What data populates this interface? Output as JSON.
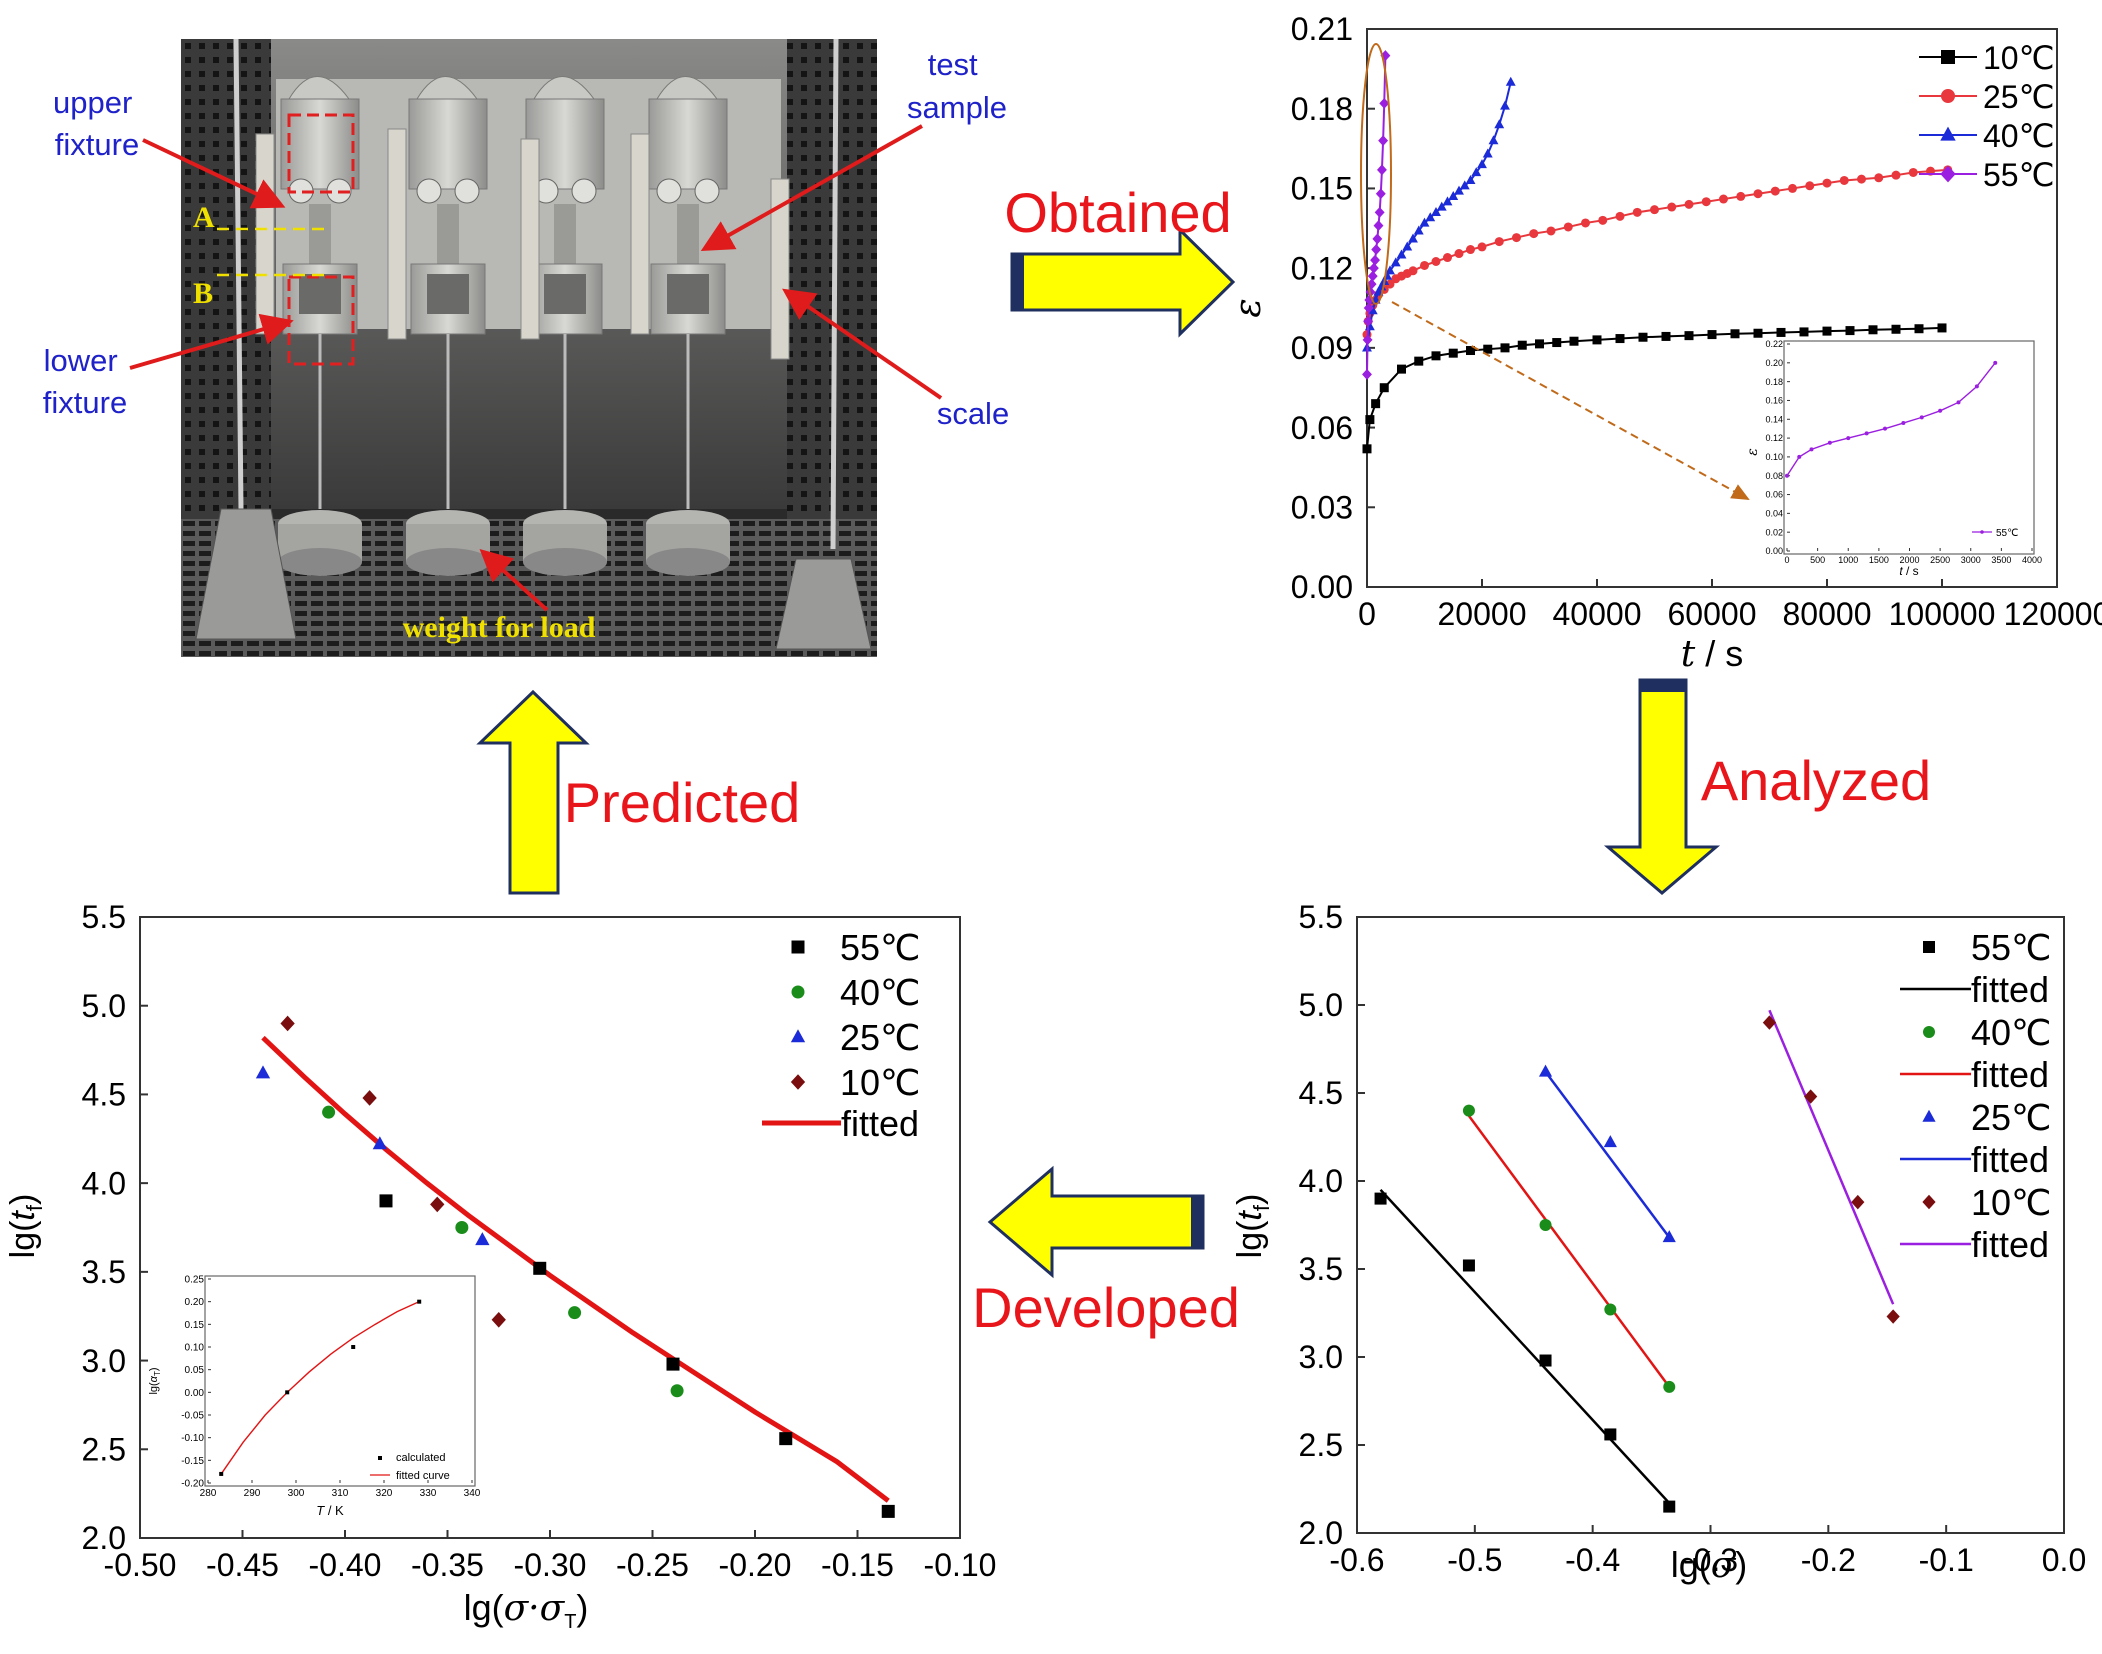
{
  "arrows": {
    "obtained": "Obtained",
    "analyzed": "Analyzed",
    "developed": "Developed",
    "predicted": "Predicted"
  },
  "photo": {
    "labels": {
      "upper_fixture": [
        "upper",
        "fixture"
      ],
      "lower_fixture": [
        "lower",
        "fixture"
      ],
      "test_sample": [
        "test",
        "sample"
      ],
      "scale": "scale",
      "weight": "weight for load",
      "mark_a": "A",
      "mark_b": "B"
    }
  },
  "colors": {
    "arrow_fill": "#ffff00",
    "arrow_outline": "#1f2f5f",
    "arrow_text": "#e8161b",
    "photo_label": "#1e22c8",
    "pointer": "#e01b1b",
    "c10": "#000000",
    "c25": "#e8383d",
    "c40": "#1c2bd8",
    "c55": "#9b1fe0",
    "dark_red": "#7a0e0e",
    "green": "#1a8c1a",
    "fit_red": "#e21414"
  },
  "chart_data": [
    {
      "id": "strain_time",
      "type": "line",
      "xlabel_italic": "t",
      "xlabel_rest": " / s",
      "ylabel": "ε",
      "xlim": [
        0,
        120000
      ],
      "ylim": [
        0,
        0.21
      ],
      "xticks": [
        0,
        20000,
        40000,
        60000,
        80000,
        100000,
        120000
      ],
      "yticks": [
        0,
        0.03,
        0.06,
        0.09,
        0.12,
        0.15,
        0.18,
        0.21
      ],
      "xtick_labels": [
        "0",
        "20000",
        "40000",
        "60000",
        "80000",
        "100000",
        "120000"
      ],
      "ytick_labels": [
        "0.00",
        "0.03",
        "0.06",
        "0.09",
        "0.12",
        "0.15",
        "0.18",
        "0.21"
      ],
      "legend_position": "top-right",
      "series": [
        {
          "name": "10℃",
          "marker": "square",
          "color": "#000000",
          "x": [
            0,
            500,
            1500,
            3000,
            6000,
            9000,
            12000,
            15000,
            18000,
            21000,
            24000,
            27000,
            30000,
            33000,
            36000,
            40000,
            44000,
            48000,
            52000,
            56000,
            60000,
            64000,
            68000,
            72000,
            76000,
            80000,
            84000,
            88000,
            92000,
            96000,
            100000
          ],
          "y": [
            0.052,
            0.063,
            0.069,
            0.075,
            0.082,
            0.085,
            0.087,
            0.088,
            0.089,
            0.0895,
            0.09,
            0.091,
            0.0915,
            0.092,
            0.0925,
            0.093,
            0.0935,
            0.094,
            0.0943,
            0.0946,
            0.095,
            0.0953,
            0.0955,
            0.0958,
            0.096,
            0.0963,
            0.0965,
            0.0968,
            0.097,
            0.0972,
            0.0975
          ]
        },
        {
          "name": "25℃",
          "marker": "circle",
          "color": "#e8383d",
          "x": [
            0,
            200,
            500,
            1000,
            1500,
            2000,
            3000,
            4000,
            5000,
            6000,
            7000,
            8000,
            10000,
            12000,
            14000,
            16000,
            18000,
            20000,
            23000,
            26000,
            29000,
            32000,
            35000,
            38000,
            41000,
            44000,
            47000,
            50000,
            53000,
            56000,
            59000,
            62000,
            65000,
            68000,
            71000,
            74000,
            77000,
            80000,
            83000,
            86000,
            89000,
            92000,
            95000,
            98000,
            101000
          ],
          "y": [
            0.095,
            0.1,
            0.103,
            0.106,
            0.108,
            0.11,
            0.112,
            0.114,
            0.116,
            0.117,
            0.118,
            0.119,
            0.121,
            0.1225,
            0.124,
            0.1255,
            0.127,
            0.128,
            0.13,
            0.1315,
            0.133,
            0.134,
            0.1355,
            0.137,
            0.138,
            0.1395,
            0.141,
            0.142,
            0.143,
            0.144,
            0.145,
            0.146,
            0.147,
            0.148,
            0.149,
            0.15,
            0.151,
            0.152,
            0.153,
            0.1535,
            0.154,
            0.155,
            0.156,
            0.1565,
            0.157
          ]
        },
        {
          "name": "40℃",
          "marker": "triangle",
          "color": "#1c2bd8",
          "x": [
            0,
            500,
            1000,
            1500,
            2000,
            2500,
            3000,
            3500,
            4000,
            5000,
            6000,
            7000,
            8000,
            9000,
            10000,
            11000,
            12000,
            13000,
            14000,
            15000,
            16000,
            17000,
            18000,
            19000,
            20000,
            21000,
            22000,
            23000,
            24000,
            25000
          ],
          "y": [
            0.09,
            0.098,
            0.104,
            0.108,
            0.111,
            0.113,
            0.115,
            0.117,
            0.119,
            0.122,
            0.125,
            0.128,
            0.131,
            0.134,
            0.137,
            0.139,
            0.141,
            0.143,
            0.145,
            0.147,
            0.149,
            0.151,
            0.153,
            0.156,
            0.159,
            0.163,
            0.168,
            0.174,
            0.181,
            0.19
          ]
        },
        {
          "name": "55℃",
          "marker": "diamond",
          "color": "#9b1fe0",
          "x": [
            0,
            100,
            200,
            300,
            400,
            600,
            800,
            1000,
            1200,
            1400,
            1600,
            1800,
            2000,
            2200,
            2400,
            2600,
            2800,
            3000,
            3200
          ],
          "y": [
            0.08,
            0.093,
            0.1,
            0.105,
            0.108,
            0.111,
            0.114,
            0.117,
            0.12,
            0.123,
            0.127,
            0.131,
            0.136,
            0.141,
            0.148,
            0.157,
            0.168,
            0.182,
            0.2
          ]
        }
      ],
      "inset": {
        "xlabel_italic": "t",
        "xlabel_rest": " / s",
        "ylabel": "ε",
        "xlim": [
          0,
          4000
        ],
        "ylim": [
          0,
          0.22
        ],
        "xticks": [
          0,
          500,
          1000,
          1500,
          2000,
          2500,
          3000,
          3500,
          4000
        ],
        "yticks": [
          0,
          0.02,
          0.04,
          0.06,
          0.08,
          0.1,
          0.12,
          0.14,
          0.16,
          0.18,
          0.2,
          0.22
        ],
        "xtick_labels": [
          "0",
          "500",
          "1000",
          "1500",
          "2000",
          "2500",
          "3000",
          "3500",
          "4000"
        ],
        "ytick_labels": [
          "0.00",
          "0.02",
          "0.04",
          "0.06",
          "0.08",
          "0.10",
          "0.12",
          "0.14",
          "0.16",
          "0.18",
          "0.20",
          "0.22"
        ],
        "series": [
          {
            "name": "55℃",
            "color": "#9b1fe0",
            "x": [
              0,
              200,
              400,
              700,
              1000,
              1300,
              1600,
              1900,
              2200,
              2500,
              2800,
              3100,
              3400
            ],
            "y": [
              0.08,
              0.1,
              0.108,
              0.115,
              0.12,
              0.125,
              0.13,
              0.136,
              0.142,
              0.149,
              0.158,
              0.175,
              0.2
            ]
          }
        ]
      }
    },
    {
      "id": "lgtf_lgsigma",
      "type": "scatter",
      "xlabel_prefix": "lg(",
      "xlabel_italic": "σ",
      "xlabel_suffix": ")",
      "ylabel": "lg(tf)",
      "xlim": [
        -0.6,
        0.0
      ],
      "ylim": [
        2.0,
        5.5
      ],
      "xticks": [
        -0.6,
        -0.5,
        -0.4,
        -0.3,
        -0.2,
        -0.1,
        0.0
      ],
      "yticks": [
        2.0,
        2.5,
        3.0,
        3.5,
        4.0,
        4.5,
        5.0,
        5.5
      ],
      "xtick_labels": [
        "-0.6",
        "-0.5",
        "-0.4",
        "-0.3",
        "-0.2",
        "-0.1",
        "0.0"
      ],
      "ytick_labels": [
        "2.0",
        "2.5",
        "3.0",
        "3.5",
        "4.0",
        "4.5",
        "5.0",
        "5.5"
      ],
      "legend_position": "top-right",
      "legend": [
        "55℃",
        "fitted",
        "40℃",
        "fitted",
        "25℃",
        "fitted",
        "10℃",
        "fitted"
      ],
      "series": [
        {
          "name": "55℃",
          "marker": "square",
          "color": "#000000",
          "x": [
            -0.58,
            -0.505,
            -0.44,
            -0.385,
            -0.335
          ],
          "y": [
            3.9,
            3.52,
            2.98,
            2.56,
            2.15
          ],
          "fit_x": [
            -0.58,
            -0.335
          ],
          "fit_y": [
            3.95,
            2.17
          ],
          "fit_color": "#000000"
        },
        {
          "name": "40℃",
          "marker": "circle",
          "color": "#1a8c1a",
          "x": [
            -0.505,
            -0.44,
            -0.385,
            -0.335
          ],
          "y": [
            4.4,
            3.75,
            3.27,
            2.83
          ],
          "fit_x": [
            -0.505,
            -0.335
          ],
          "fit_y": [
            4.37,
            2.83
          ],
          "fit_color": "#e21414"
        },
        {
          "name": "25℃",
          "marker": "triangle",
          "color": "#1c2bd8",
          "x": [
            -0.44,
            -0.385,
            -0.335
          ],
          "y": [
            4.62,
            4.22,
            3.68
          ],
          "fit_x": [
            -0.44,
            -0.335
          ],
          "fit_y": [
            4.62,
            3.68
          ],
          "fit_color": "#1c2bd8"
        },
        {
          "name": "10℃",
          "marker": "diamond",
          "color": "#7a0e0e",
          "x": [
            -0.25,
            -0.215,
            -0.175,
            -0.145
          ],
          "y": [
            4.9,
            4.48,
            3.88,
            3.23
          ],
          "fit_x": [
            -0.25,
            -0.145
          ],
          "fit_y": [
            4.97,
            3.3
          ],
          "fit_color": "#9b1fe0"
        }
      ]
    },
    {
      "id": "lgtf_reduced",
      "type": "scatter",
      "xlabel_prefix": "lg(",
      "xlabel_italic": "σ·σ",
      "xlabel_sub": "T",
      "xlabel_suffix": ")",
      "ylabel": "lg(tf)",
      "xlim": [
        -0.5,
        -0.1
      ],
      "ylim": [
        2.0,
        5.5
      ],
      "xticks": [
        -0.5,
        -0.45,
        -0.4,
        -0.35,
        -0.3,
        -0.25,
        -0.2,
        -0.15,
        -0.1
      ],
      "yticks": [
        2.0,
        2.5,
        3.0,
        3.5,
        4.0,
        4.5,
        5.0,
        5.5
      ],
      "xtick_labels": [
        "-0.50",
        "-0.45",
        "-0.40",
        "-0.35",
        "-0.30",
        "-0.25",
        "-0.20",
        "-0.15",
        "-0.10"
      ],
      "ytick_labels": [
        "2.0",
        "2.5",
        "3.0",
        "3.5",
        "4.0",
        "4.5",
        "5.0",
        "5.5"
      ],
      "legend_position": "top-right",
      "legend": [
        "55℃",
        "40℃",
        "25℃",
        "10℃",
        "fitted"
      ],
      "series": [
        {
          "name": "55℃",
          "marker": "square",
          "color": "#000000",
          "x": [
            -0.38,
            -0.305,
            -0.24,
            -0.185,
            -0.135
          ],
          "y": [
            3.9,
            3.52,
            2.98,
            2.56,
            2.15
          ]
        },
        {
          "name": "40℃",
          "marker": "circle",
          "color": "#1a8c1a",
          "x": [
            -0.408,
            -0.343,
            -0.288,
            -0.238
          ],
          "y": [
            4.4,
            3.75,
            3.27,
            2.83
          ]
        },
        {
          "name": "25℃",
          "marker": "triangle",
          "color": "#1c2bd8",
          "x": [
            -0.44,
            -0.383,
            -0.333
          ],
          "y": [
            4.62,
            4.22,
            3.68
          ]
        },
        {
          "name": "10℃",
          "marker": "diamond",
          "color": "#7a0e0e",
          "x": [
            -0.428,
            -0.388,
            -0.355,
            -0.325
          ],
          "y": [
            4.9,
            4.48,
            3.88,
            3.23
          ]
        }
      ],
      "fit": {
        "name": "fitted",
        "color": "#e21414",
        "x": [
          -0.44,
          -0.42,
          -0.4,
          -0.38,
          -0.36,
          -0.34,
          -0.32,
          -0.3,
          -0.28,
          -0.26,
          -0.24,
          -0.22,
          -0.2,
          -0.18,
          -0.16,
          -0.135
        ],
        "y": [
          4.82,
          4.6,
          4.39,
          4.19,
          4.0,
          3.82,
          3.65,
          3.48,
          3.32,
          3.16,
          3.01,
          2.86,
          2.71,
          2.57,
          2.43,
          2.21
        ]
      },
      "inset": {
        "xlabel_italic": "T",
        "xlabel_rest": " / K",
        "ylabel": "lg(αT)",
        "xlim": [
          280,
          340
        ],
        "ylim": [
          -0.2,
          0.25
        ],
        "xticks": [
          280,
          290,
          300,
          310,
          320,
          330,
          340
        ],
        "yticks": [
          -0.2,
          -0.15,
          -0.1,
          -0.05,
          0,
          0.05,
          0.1,
          0.15,
          0.2,
          0.25
        ],
        "xtick_labels": [
          "280",
          "290",
          "300",
          "310",
          "320",
          "330",
          "340"
        ],
        "ytick_labels": [
          "-0.20",
          "-0.15",
          "-0.10",
          "-0.05",
          "0.00",
          "0.05",
          "0.10",
          "0.15",
          "0.20",
          "0.25"
        ],
        "legend": [
          "calculated",
          "fitted curve"
        ],
        "points": {
          "x": [
            283,
            298,
            313,
            328
          ],
          "y": [
            -0.18,
            0.0,
            0.1,
            0.2
          ]
        },
        "fit": {
          "x": [
            283,
            288,
            293,
            298,
            303,
            308,
            313,
            318,
            323,
            328
          ],
          "y": [
            -0.18,
            -0.11,
            -0.05,
            0.0,
            0.045,
            0.085,
            0.12,
            0.15,
            0.178,
            0.2
          ]
        }
      }
    }
  ]
}
